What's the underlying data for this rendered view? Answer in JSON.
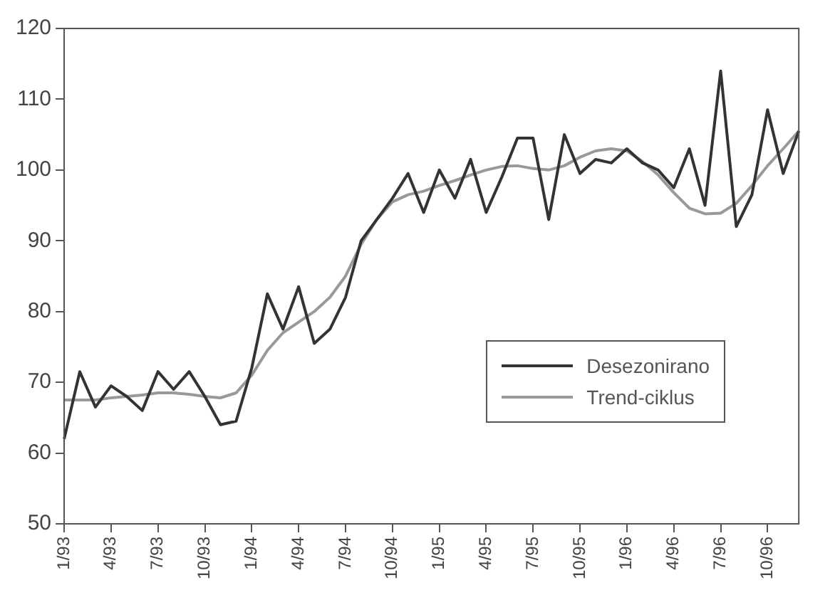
{
  "chart_data": {
    "type": "line",
    "categories": [
      "1/93",
      null,
      null,
      "4/93",
      null,
      null,
      "7/93",
      null,
      null,
      "10/93",
      null,
      null,
      "1/94",
      null,
      null,
      "4/94",
      null,
      null,
      "7/94",
      null,
      null,
      "10/94",
      null,
      null,
      "1/95",
      null,
      null,
      "4/95",
      null,
      null,
      "7/95",
      null,
      null,
      "10/95",
      null,
      null,
      "1/96",
      null,
      null,
      "4/96",
      null,
      null,
      "7/96",
      null,
      null,
      "10/96",
      null,
      null
    ],
    "series": [
      {
        "name": "Desezonirano",
        "color": "#333333",
        "values": [
          62,
          71.5,
          66.5,
          69.5,
          68,
          66,
          71.5,
          69,
          71.5,
          68,
          64,
          64.5,
          72,
          82.5,
          77.5,
          83.5,
          75.5,
          77.5,
          82,
          90,
          93,
          96,
          99.5,
          94,
          100,
          96,
          101.5,
          94,
          99,
          104.5,
          104.5,
          93,
          105,
          99.5,
          101.5,
          101,
          103,
          101,
          100,
          97.5,
          103,
          95,
          114,
          92,
          96.5,
          108.5,
          99.5,
          105.5
        ]
      },
      {
        "name": "Trend-ciklus",
        "color": "#999999",
        "values": [
          67.5,
          67.5,
          67.5,
          67.8,
          68,
          68.2,
          68.5,
          68.5,
          68.3,
          68,
          67.8,
          68.5,
          71,
          74.5,
          77,
          78.5,
          80,
          82,
          85,
          89.5,
          93,
          95.5,
          96.5,
          97,
          97.8,
          98.5,
          99.3,
          100,
          100.5,
          100.6,
          100.2,
          100,
          100.6,
          101.8,
          102.7,
          103,
          102.7,
          101.2,
          99.3,
          96.8,
          94.6,
          93.8,
          93.9,
          95.3,
          97.8,
          100.6,
          103,
          105.5
        ]
      }
    ],
    "ylim": [
      50,
      120
    ],
    "yticks": [
      50,
      60,
      70,
      80,
      90,
      100,
      110,
      120
    ],
    "grid": false,
    "legend": "right",
    "marker": "none",
    "line_style": "solid"
  }
}
